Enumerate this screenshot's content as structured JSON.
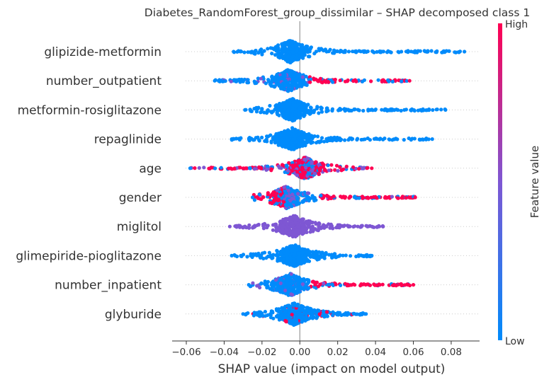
{
  "chart_data": {
    "type": "scatter",
    "subtype": "shap-beeswarm",
    "title": "Diabetes_RandomForest_group_dissimilar – SHAP decomposed class 1",
    "xlabel": "SHAP value (impact on model output)",
    "xlim": [
      -0.063,
      0.095
    ],
    "xticks": [
      -0.06,
      -0.04,
      -0.02,
      0.0,
      0.02,
      0.04,
      0.06,
      0.08
    ],
    "xtick_labels": [
      "−0.06",
      "−0.04",
      "−0.02",
      "0.00",
      "0.02",
      "0.04",
      "0.06",
      "0.08"
    ],
    "colorbar": {
      "label": "Feature value",
      "high_label": "High",
      "low_label": "Low",
      "high_color": "#ff0052",
      "mid_color": "#7e57d3",
      "low_color": "#008bfb"
    },
    "grid": false,
    "features": [
      {
        "name": "glipizide-metformin",
        "min": -0.035,
        "max": 0.087,
        "peak": -0.005,
        "color_mode": "low"
      },
      {
        "name": "number_outpatient",
        "min": -0.045,
        "max": 0.058,
        "peak": -0.006,
        "color_mode": "mixed-right"
      },
      {
        "name": "metformin-rosiglitazone",
        "min": -0.029,
        "max": 0.077,
        "peak": -0.004,
        "color_mode": "low"
      },
      {
        "name": "repaglinide",
        "min": -0.036,
        "max": 0.07,
        "peak": -0.004,
        "color_mode": "low"
      },
      {
        "name": "age",
        "min": -0.058,
        "max": 0.038,
        "peak": 0.003,
        "color_mode": "mixed"
      },
      {
        "name": "gender",
        "min": -0.025,
        "max": 0.061,
        "peak": -0.007,
        "color_mode": "mixed-gender"
      },
      {
        "name": "miglitol",
        "min": -0.037,
        "max": 0.044,
        "peak": -0.003,
        "color_mode": "mid"
      },
      {
        "name": "glimepiride-pioglitazone",
        "min": -0.036,
        "max": 0.038,
        "peak": -0.003,
        "color_mode": "low"
      },
      {
        "name": "number_inpatient",
        "min": -0.027,
        "max": 0.06,
        "peak": -0.005,
        "color_mode": "mixed-right"
      },
      {
        "name": "glyburide",
        "min": -0.03,
        "max": 0.035,
        "peak": -0.003,
        "color_mode": "low-sparse-high"
      }
    ]
  }
}
